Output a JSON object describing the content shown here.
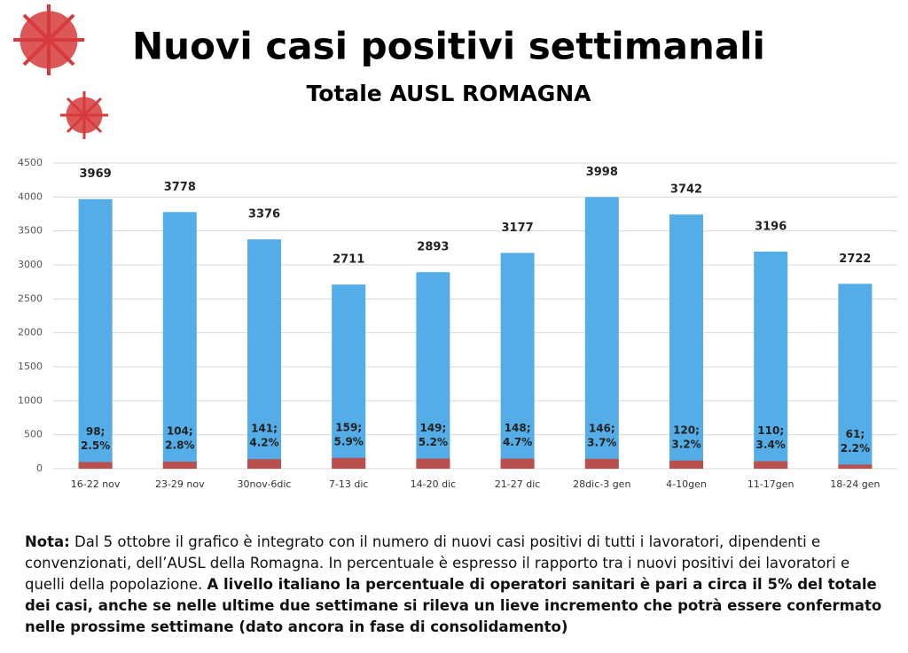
{
  "chart_data": {
    "type": "bar",
    "title": "Nuovi casi positivi settimanali",
    "subtitle": "Totale AUSL ROMAGNA",
    "categories": [
      "16-22 nov",
      "23-29 nov",
      "30nov-6dic",
      "7-13 dic",
      "14-20 dic",
      "21-27 dic",
      "28dic-3 gen",
      "4-10gen",
      "11-17gen",
      "18-24 gen"
    ],
    "series": [
      {
        "color": "#55ade8",
        "values": [
          3969,
          3778,
          3376,
          2711,
          2893,
          3177,
          3998,
          3742,
          3196,
          2722
        ]
      },
      {
        "color": "#b9504e",
        "values": [
          98,
          104,
          141,
          159,
          149,
          148,
          146,
          120,
          110,
          61
        ],
        "value_labels": [
          "98;",
          "104;",
          "141;",
          "159;",
          "149;",
          "148;",
          "146;",
          "120;",
          "110;",
          "61;"
        ]
      }
    ],
    "shares": {
      "values": [
        2.5,
        2.8,
        4.2,
        5.9,
        5.2,
        4.7,
        3.7,
        3.2,
        3.4,
        2.2
      ],
      "value_labels": [
        "2.5%",
        "2.8%",
        "4.2%",
        "5.9%",
        "5.2%",
        "4.7%",
        "3.7%",
        "3.2%",
        "3.4%",
        "2.2%"
      ]
    },
    "ylim": [
      0,
      4500
    ],
    "yticks": [
      0,
      500,
      1000,
      1500,
      2000,
      2500,
      3000,
      3500,
      4000,
      4500
    ],
    "grid": true
  },
  "note": {
    "label": "Nota:",
    "text": "Dal 5 ottobre il grafico è integrato con il numero di nuovi casi positivi di tutti i lavoratori, dipendenti e convenzionati, dell’AUSL della Romagna. In percentuale è espresso il rapporto tra i nuovi positivi dei lavoratori e quelli della popolazione.",
    "emphasis": "A livello italiano la percentuale di operatori sanitari è pari a circa il 5% del totale dei casi, anche se nelle ultime due settimane si rileva un lieve incremento che potrà essere confermato nelle prossime settimane (dato ancora in fase di consolidamento)"
  }
}
